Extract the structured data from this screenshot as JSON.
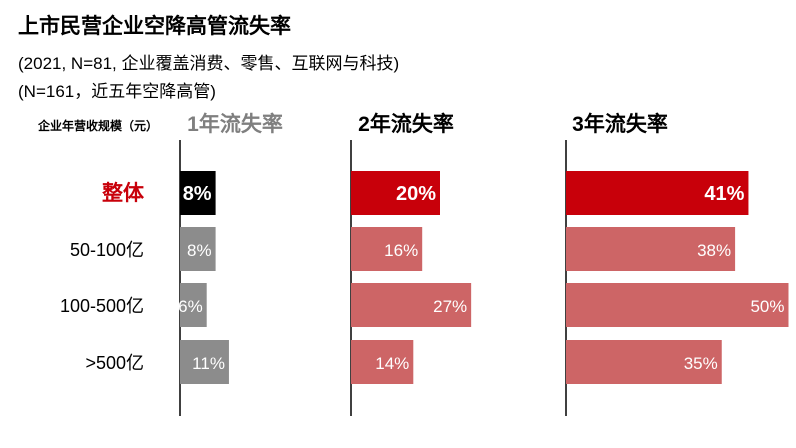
{
  "title": "上市民营企业空降高管流失率",
  "subtitle_lines": [
    "(2021, N=81, 企业覆盖消费、零售、互联网与科技)",
    "(N=161，近五年空降高管)"
  ],
  "chart_data": {
    "type": "bar",
    "orientation": "horizontal",
    "category_axis_title": "企业年营收规模（元）",
    "categories": [
      "整体",
      "50-100亿",
      "100-500亿",
      ">500亿"
    ],
    "value_unit": "%",
    "panels": [
      {
        "name": "1年流失率",
        "values": [
          8,
          8,
          6,
          11
        ]
      },
      {
        "name": "2年流失率",
        "values": [
          20,
          16,
          27,
          14
        ]
      },
      {
        "name": "3年流失率",
        "values": [
          41,
          38,
          50,
          35
        ]
      }
    ],
    "colors": {
      "panel1_overall": "#000000",
      "panel1_rows": "#8c8c8c",
      "panel2_3_overall": "#c8000a",
      "panel2_3_rows": "#cd6566",
      "overall_label": "#c8000a",
      "panel1_title": "#7f7f7f",
      "panel_title": "#000000"
    }
  }
}
